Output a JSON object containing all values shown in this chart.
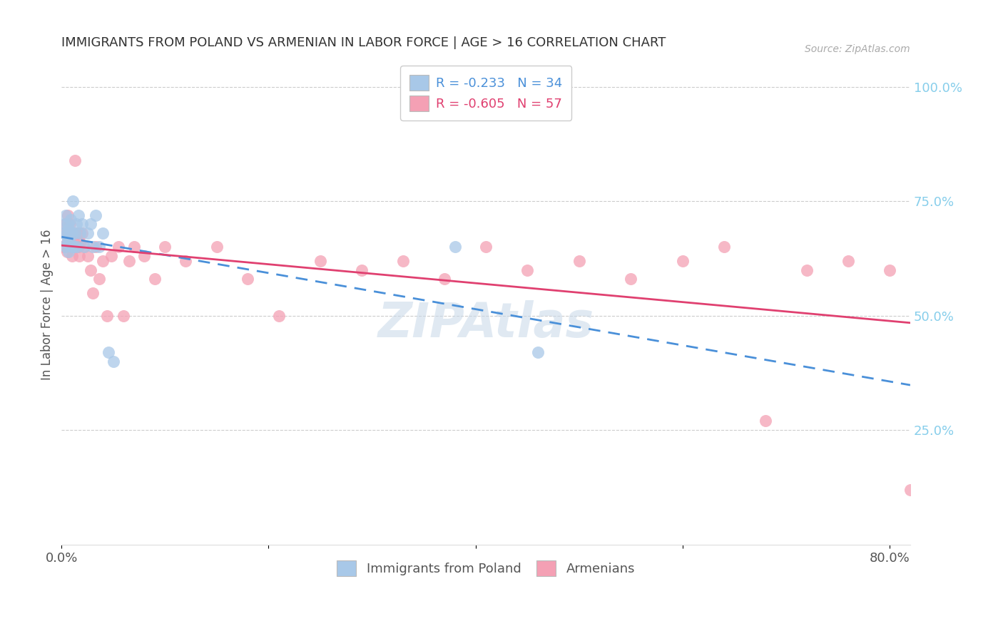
{
  "title": "IMMIGRANTS FROM POLAND VS ARMENIAN IN LABOR FORCE | AGE > 16 CORRELATION CHART",
  "source": "Source: ZipAtlas.com",
  "ylabel": "In Labor Force | Age > 16",
  "xlim": [
    0.0,
    0.82
  ],
  "ylim": [
    0.0,
    1.05
  ],
  "yticks": [
    0.25,
    0.5,
    0.75,
    1.0
  ],
  "ytick_labels": [
    "25.0%",
    "50.0%",
    "75.0%",
    "100.0%"
  ],
  "xticks": [
    0.0,
    0.2,
    0.4,
    0.6,
    0.8
  ],
  "xtick_labels": [
    "0.0%",
    "",
    "",
    "",
    "80.0%"
  ],
  "legend_labels": [
    "Immigrants from Poland",
    "Armenians"
  ],
  "R_poland": -0.233,
  "N_poland": 34,
  "R_armenian": -0.605,
  "N_armenian": 57,
  "color_poland": "#a8c8e8",
  "color_armenian": "#f4a0b4",
  "line_color_poland": "#4a90d9",
  "line_color_armenian": "#e04070",
  "background_color": "#ffffff",
  "grid_color": "#cccccc",
  "title_color": "#333333",
  "source_color": "#aaaaaa",
  "right_axis_color": "#87CEEB",
  "poland_x": [
    0.002,
    0.003,
    0.004,
    0.004,
    0.005,
    0.005,
    0.006,
    0.006,
    0.007,
    0.007,
    0.008,
    0.008,
    0.009,
    0.01,
    0.01,
    0.011,
    0.012,
    0.013,
    0.014,
    0.015,
    0.016,
    0.018,
    0.02,
    0.022,
    0.025,
    0.028,
    0.03,
    0.033,
    0.036,
    0.04,
    0.045,
    0.05,
    0.38,
    0.46
  ],
  "poland_y": [
    0.68,
    0.7,
    0.65,
    0.72,
    0.68,
    0.66,
    0.7,
    0.67,
    0.64,
    0.69,
    0.66,
    0.68,
    0.71,
    0.65,
    0.68,
    0.75,
    0.65,
    0.68,
    0.7,
    0.65,
    0.72,
    0.68,
    0.7,
    0.65,
    0.68,
    0.7,
    0.65,
    0.72,
    0.65,
    0.68,
    0.42,
    0.4,
    0.65,
    0.42
  ],
  "armenian_x": [
    0.002,
    0.003,
    0.004,
    0.005,
    0.005,
    0.006,
    0.007,
    0.007,
    0.008,
    0.008,
    0.009,
    0.01,
    0.01,
    0.011,
    0.012,
    0.013,
    0.014,
    0.015,
    0.016,
    0.017,
    0.018,
    0.02,
    0.022,
    0.025,
    0.028,
    0.03,
    0.033,
    0.036,
    0.04,
    0.044,
    0.048,
    0.055,
    0.06,
    0.065,
    0.07,
    0.08,
    0.09,
    0.1,
    0.12,
    0.15,
    0.18,
    0.21,
    0.25,
    0.29,
    0.33,
    0.37,
    0.41,
    0.45,
    0.5,
    0.55,
    0.6,
    0.64,
    0.68,
    0.72,
    0.76,
    0.8,
    0.82
  ],
  "armenian_y": [
    0.65,
    0.68,
    0.7,
    0.66,
    0.64,
    0.72,
    0.68,
    0.65,
    0.66,
    0.7,
    0.68,
    0.65,
    0.63,
    0.68,
    0.66,
    0.84,
    0.65,
    0.68,
    0.65,
    0.63,
    0.66,
    0.68,
    0.65,
    0.63,
    0.6,
    0.55,
    0.65,
    0.58,
    0.62,
    0.5,
    0.63,
    0.65,
    0.5,
    0.62,
    0.65,
    0.63,
    0.58,
    0.65,
    0.62,
    0.65,
    0.58,
    0.5,
    0.62,
    0.6,
    0.62,
    0.58,
    0.65,
    0.6,
    0.62,
    0.58,
    0.62,
    0.65,
    0.27,
    0.6,
    0.62,
    0.6,
    0.12
  ]
}
